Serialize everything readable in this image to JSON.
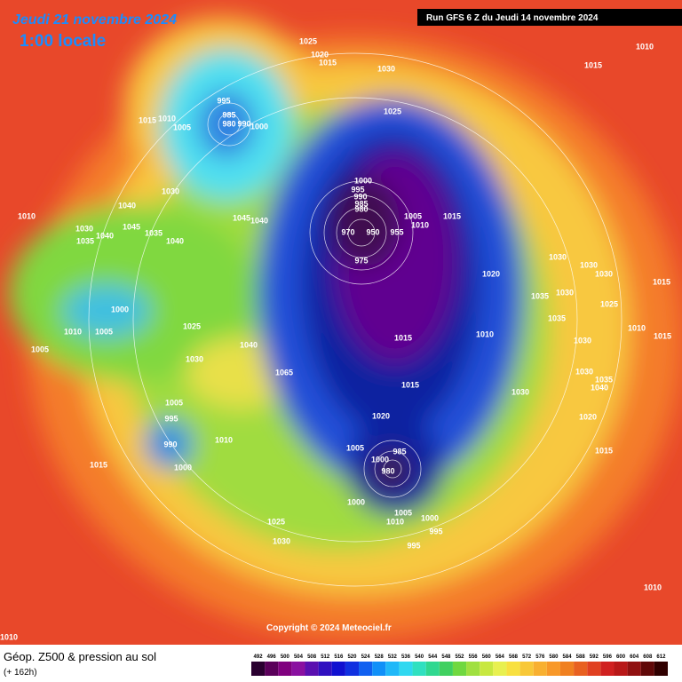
{
  "header": {
    "date": "Jeudi 21 novembre 2024",
    "time": "1:00 locale",
    "run": "Run GFS 6 Z du Jeudi 14 novembre 2024"
  },
  "copyright": "Copyright © 2024 Meteociel.fr",
  "footer": {
    "title": "Géop. Z500 & pression au sol",
    "lead": "(+ 162h)"
  },
  "pressure_labels": [
    1025,
    1020,
    1015,
    1030,
    1015,
    1010,
    995,
    985,
    980,
    990,
    1000,
    1015,
    1010,
    1005,
    1025,
    1030,
    1040,
    1045,
    1040,
    1045,
    1035,
    1040,
    1030,
    1040,
    1035,
    1010,
    1000,
    995,
    990,
    985,
    980,
    970,
    950,
    955,
    975,
    1005,
    1010,
    1015,
    1030,
    1030,
    1030,
    1035,
    1030,
    1025,
    1020,
    1000,
    1010,
    1005,
    1005,
    1025,
    1040,
    1030,
    1065,
    1015,
    1010,
    1035,
    1030,
    1010,
    1015,
    1015,
    1015,
    1030,
    1030,
    1035,
    1040,
    1020,
    1005,
    995,
    990,
    1010,
    1000,
    1015,
    1020,
    1005,
    1000,
    985,
    980,
    1015,
    1000,
    1005,
    1010,
    1000,
    995,
    995,
    1025,
    1030,
    1010,
    1010
  ],
  "scale": {
    "values": [
      492,
      496,
      500,
      504,
      508,
      512,
      516,
      520,
      524,
      528,
      532,
      536,
      540,
      544,
      548,
      552,
      556,
      560,
      564,
      568,
      572,
      576,
      580,
      584,
      588,
      592,
      596,
      600,
      604,
      608,
      612
    ],
    "colors": [
      "#2a0030",
      "#5a005a",
      "#80007f",
      "#8a10a0",
      "#5a10b0",
      "#3010c0",
      "#1010d0",
      "#1030e0",
      "#1060f0",
      "#1090f8",
      "#20b8f8",
      "#30d8f0",
      "#30e0c0",
      "#30d890",
      "#40d060",
      "#70d840",
      "#a0e040",
      "#c8e840",
      "#e8f050",
      "#f8e040",
      "#f8c838",
      "#f8b030",
      "#f89828",
      "#f08020",
      "#e86020",
      "#e04020",
      "#d02020",
      "#b81818",
      "#901010",
      "#600808",
      "#300000"
    ]
  }
}
